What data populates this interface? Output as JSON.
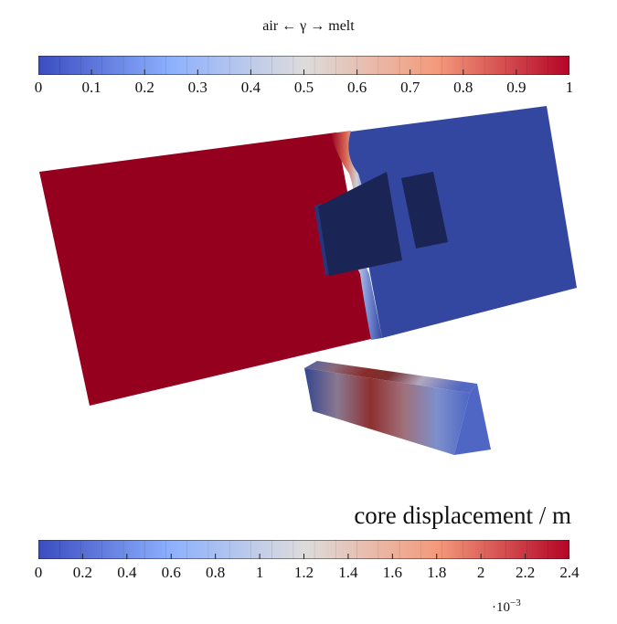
{
  "top_colorbar": {
    "title": "air ← γ → melt",
    "ticks": [
      "0",
      "0.1",
      "0.2",
      "0.3",
      "0.4",
      "0.5",
      "0.6",
      "0.7",
      "0.8",
      "0.9",
      "1"
    ],
    "colors": [
      "#3b4cc0",
      "#dddddd",
      "#b40426"
    ]
  },
  "bottom_colorbar": {
    "title": "core displacement / m",
    "ticks": [
      "0",
      "0.2",
      "0.4",
      "0.6",
      "0.8",
      "1",
      "1.2",
      "1.4",
      "1.6",
      "1.8",
      "2",
      "2.2",
      "2.4"
    ],
    "exponent_base": "·10",
    "exponent_power": "−3"
  },
  "scene_colors": {
    "melt": "#96001f",
    "air": "#3447a0",
    "core_dark": "#1a2455",
    "core_side": "#27357a"
  }
}
